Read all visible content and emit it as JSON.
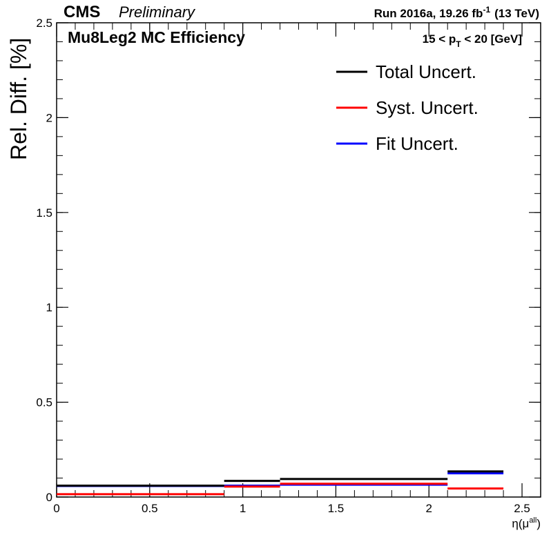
{
  "header": {
    "cms": "CMS",
    "preliminary": "Preliminary",
    "run_text": "Run 2016a,  19.26 fb",
    "run_sup": "-1",
    "energy": "(13 TeV)"
  },
  "chart_data": {
    "type": "line",
    "title": "Mu8Leg2 MC Efficiency",
    "pt_bin": {
      "prefix": "15 < p",
      "sub": "T",
      "suffix": " < 20 [GeV]"
    },
    "ylabel": "Rel. Diff. [%]",
    "xlabel": {
      "main": "η(μ",
      "sup": "all",
      "close": ")"
    },
    "xlim": [
      0,
      2.6
    ],
    "ylim": [
      0,
      2.5
    ],
    "x_ticks": [
      0,
      0.5,
      1,
      1.5,
      2,
      2.5
    ],
    "x_tick_labels": [
      "0",
      "0.5",
      "1",
      "1.5",
      "2",
      "2.5"
    ],
    "y_ticks": [
      0,
      0.5,
      1,
      1.5,
      2,
      2.5
    ],
    "y_tick_labels": [
      "0",
      "0.5",
      "1",
      "1.5",
      "2",
      "2.5"
    ],
    "bin_edges": [
      0,
      0.9,
      1.2,
      2.1,
      2.4
    ],
    "series": [
      {
        "name": "Total Uncert.",
        "color": "#000000",
        "values": [
          0.06,
          0.085,
          0.095,
          0.135
        ]
      },
      {
        "name": "Syst. Uncert.",
        "color": "#ff0000",
        "values": [
          0.015,
          0.055,
          0.07,
          0.045
        ]
      },
      {
        "name": "Fit Uncert.",
        "color": "#0000ff",
        "values": [
          0.058,
          0.06,
          0.065,
          0.125
        ]
      }
    ],
    "legend_position": "top-right",
    "grid": false
  }
}
